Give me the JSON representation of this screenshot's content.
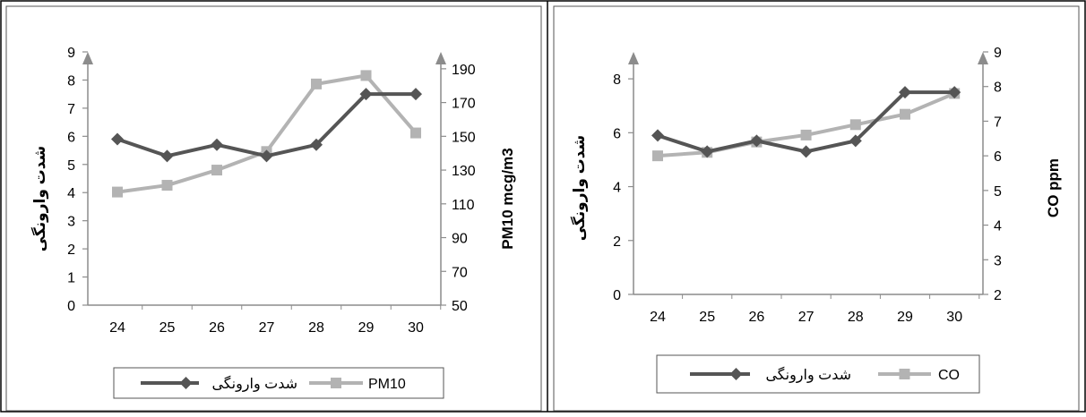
{
  "chart_data": [
    {
      "type": "line",
      "categories": [
        "24",
        "25",
        "26",
        "27",
        "28",
        "29",
        "30"
      ],
      "ylim": [
        0,
        9
      ],
      "yticks": [
        0,
        1,
        2,
        3,
        4,
        5,
        6,
        7,
        8,
        9
      ],
      "ylabel": "شدت وارونگی",
      "y2lim": [
        50,
        200
      ],
      "y2ticks": [
        50,
        70,
        90,
        110,
        130,
        150,
        170,
        190
      ],
      "y2label": "PM10 mcg/m3",
      "grid": false,
      "legend_position": "bottom",
      "series": [
        {
          "name": "شدت وارونگی",
          "axis": "left",
          "marker": "diamond",
          "color": "#555555",
          "values": [
            5.9,
            5.3,
            5.7,
            5.3,
            5.7,
            7.5,
            7.5
          ]
        },
        {
          "name": "PM10",
          "axis": "right",
          "marker": "square",
          "color": "#b3b3b3",
          "values": [
            117,
            121,
            130,
            141,
            181,
            186,
            152
          ]
        }
      ]
    },
    {
      "type": "line",
      "categories": [
        "24",
        "25",
        "26",
        "27",
        "28",
        "29",
        "30"
      ],
      "ylim": [
        0,
        9
      ],
      "yticks": [
        0,
        2,
        4,
        6,
        8
      ],
      "ylabel": "شدت وارونگی",
      "y2lim": [
        2,
        9
      ],
      "y2ticks": [
        2,
        3,
        4,
        5,
        6,
        7,
        8,
        9
      ],
      "y2label": "CO ppm",
      "grid": false,
      "legend_position": "bottom",
      "series": [
        {
          "name": "شدت وارونگی",
          "axis": "left",
          "marker": "diamond",
          "color": "#555555",
          "values": [
            5.9,
            5.3,
            5.7,
            5.3,
            5.7,
            7.5,
            7.5
          ]
        },
        {
          "name": "CO",
          "axis": "right",
          "marker": "square",
          "color": "#b3b3b3",
          "values": [
            6.0,
            6.1,
            6.4,
            6.6,
            6.9,
            7.2,
            7.8
          ]
        }
      ]
    }
  ]
}
